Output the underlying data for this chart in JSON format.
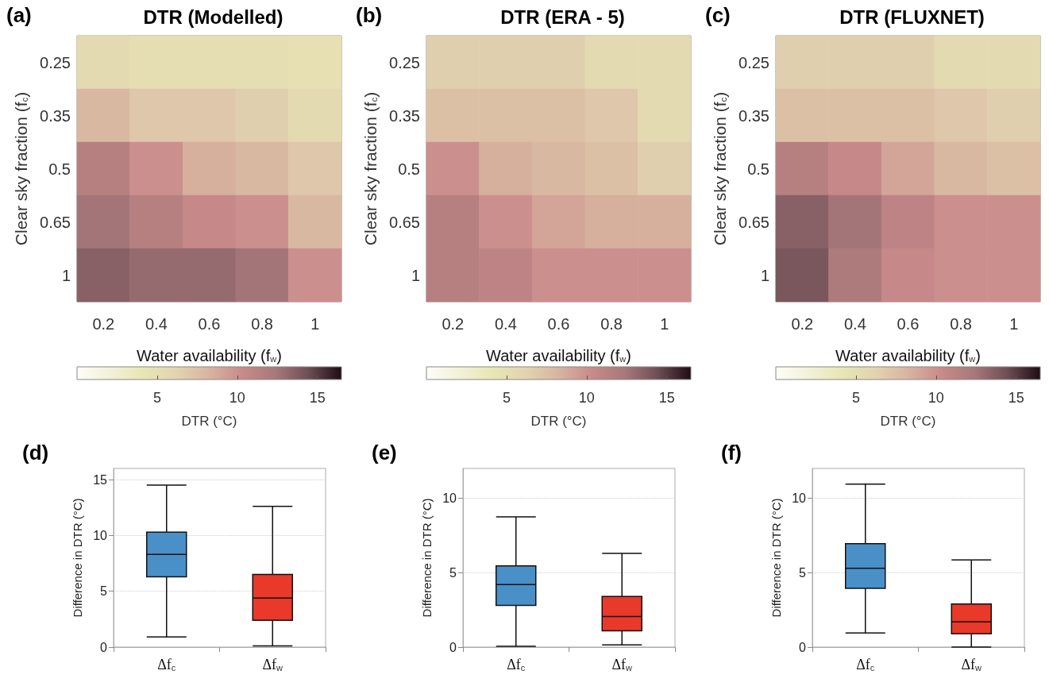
{
  "chart_data": [
    {
      "type": "heatmap",
      "title": "DTR (Modelled)",
      "annotations": [
        "(a)"
      ],
      "xlabel": "Water availability (f$_{w}$)",
      "ylabel": "Clear sky fraction (f$_{c}$)",
      "clabel": "DTR (°C)",
      "categories": [
        "0.2",
        "0.4",
        "0.6",
        "0.8",
        "1"
      ],
      "y_categories": [
        "0.25",
        "0.35",
        "0.5",
        "0.65",
        "1"
      ],
      "cells": [
        [
          5.5,
          5,
          5,
          5,
          4.8
        ],
        [
          8,
          7,
          7,
          6.5,
          5.5
        ],
        [
          11.5,
          10,
          8.5,
          8,
          7
        ],
        [
          12.5,
          11.5,
          10.5,
          10,
          8
        ],
        [
          13.5,
          13,
          13,
          12.5,
          10
        ]
      ],
      "clim": [
        0,
        16.5
      ],
      "cticks": [
        5,
        10,
        15
      ]
    },
    {
      "type": "heatmap",
      "title": "DTR (ERA - 5)",
      "annotations": [
        "(b)"
      ],
      "xlabel": "Water availability (f$_{w}$)",
      "ylabel": "Clear sky fraction (f$_{c}$)",
      "clabel": "DTR (°C)",
      "categories": [
        "0.2",
        "0.4",
        "0.6",
        "0.8",
        "1"
      ],
      "y_categories": [
        "0.25",
        "0.35",
        "0.5",
        "0.65",
        "1"
      ],
      "cells": [
        [
          6.5,
          6.5,
          6.5,
          5.5,
          5.5
        ],
        [
          7.5,
          7.5,
          7.5,
          7,
          5.5
        ],
        [
          10,
          8.5,
          8,
          7.5,
          6.5
        ],
        [
          11.5,
          10,
          9,
          8.5,
          8.5
        ],
        [
          11.5,
          11,
          10,
          10,
          10
        ]
      ],
      "clim": [
        0,
        16.5
      ],
      "cticks": [
        5,
        10,
        15
      ]
    },
    {
      "type": "heatmap",
      "title": "DTR (FLUXNET)",
      "annotations": [
        "(c)"
      ],
      "xlabel": "Water availability (f$_{w}$)",
      "ylabel": "Clear sky fraction (f$_{c}$)",
      "clabel": "DTR (°C)",
      "categories": [
        "0.2",
        "0.4",
        "0.6",
        "0.8",
        "1"
      ],
      "y_categories": [
        "0.25",
        "0.35",
        "0.5",
        "0.65",
        "1"
      ],
      "cells": [
        [
          6.5,
          6.5,
          6.5,
          5.5,
          5.5
        ],
        [
          7.5,
          7.5,
          7.5,
          7,
          6.5
        ],
        [
          11.5,
          10.5,
          9,
          8,
          7.5
        ],
        [
          13.5,
          12.5,
          11,
          10,
          10
        ],
        [
          14,
          12,
          10.5,
          10,
          10
        ]
      ],
      "clim": [
        0,
        16.5
      ],
      "cticks": [
        5,
        10,
        15
      ]
    },
    {
      "type": "box",
      "annotations": [
        "(d)"
      ],
      "ylabel": "Difference in DTR (°C)",
      "categories": [
        "Δf$_{c}$",
        "Δf$_{w}$"
      ],
      "colors": [
        "#4a90c8",
        "#e8392a"
      ],
      "boxes": [
        {
          "low": 0.9,
          "q1": 6.3,
          "median": 8.3,
          "q3": 10.3,
          "high": 14.5
        },
        {
          "low": 0.1,
          "q1": 2.4,
          "median": 4.4,
          "q3": 6.5,
          "high": 12.6
        }
      ],
      "ylim": [
        0,
        16
      ],
      "yticks": [
        0,
        5,
        10,
        15
      ],
      "grid": "y"
    },
    {
      "type": "box",
      "annotations": [
        "(e)"
      ],
      "ylabel": "Difference in DTR (°C)",
      "categories": [
        "Δf$_{c}$",
        "Δf$_{w}$"
      ],
      "colors": [
        "#4a90c8",
        "#e8392a"
      ],
      "boxes": [
        {
          "low": 0.05,
          "q1": 2.8,
          "median": 4.2,
          "q3": 5.45,
          "high": 8.75
        },
        {
          "low": 0.15,
          "q1": 1.1,
          "median": 2.05,
          "q3": 3.4,
          "high": 6.3
        }
      ],
      "ylim": [
        0,
        12
      ],
      "yticks": [
        0,
        5,
        10
      ],
      "grid": "y"
    },
    {
      "type": "box",
      "annotations": [
        "(f)"
      ],
      "ylabel": "Difference in DTR (°C)",
      "categories": [
        "Δf$_{c}$",
        "Δf$_{w}$"
      ],
      "colors": [
        "#4a90c8",
        "#e8392a"
      ],
      "boxes": [
        {
          "low": 0.95,
          "q1": 3.95,
          "median": 5.3,
          "q3": 6.95,
          "high": 10.95
        },
        {
          "low": 0,
          "q1": 0.9,
          "median": 1.7,
          "q3": 2.9,
          "high": 5.85
        }
      ],
      "ylim": [
        0,
        12
      ],
      "yticks": [
        0,
        5,
        10
      ],
      "grid": "y"
    }
  ]
}
